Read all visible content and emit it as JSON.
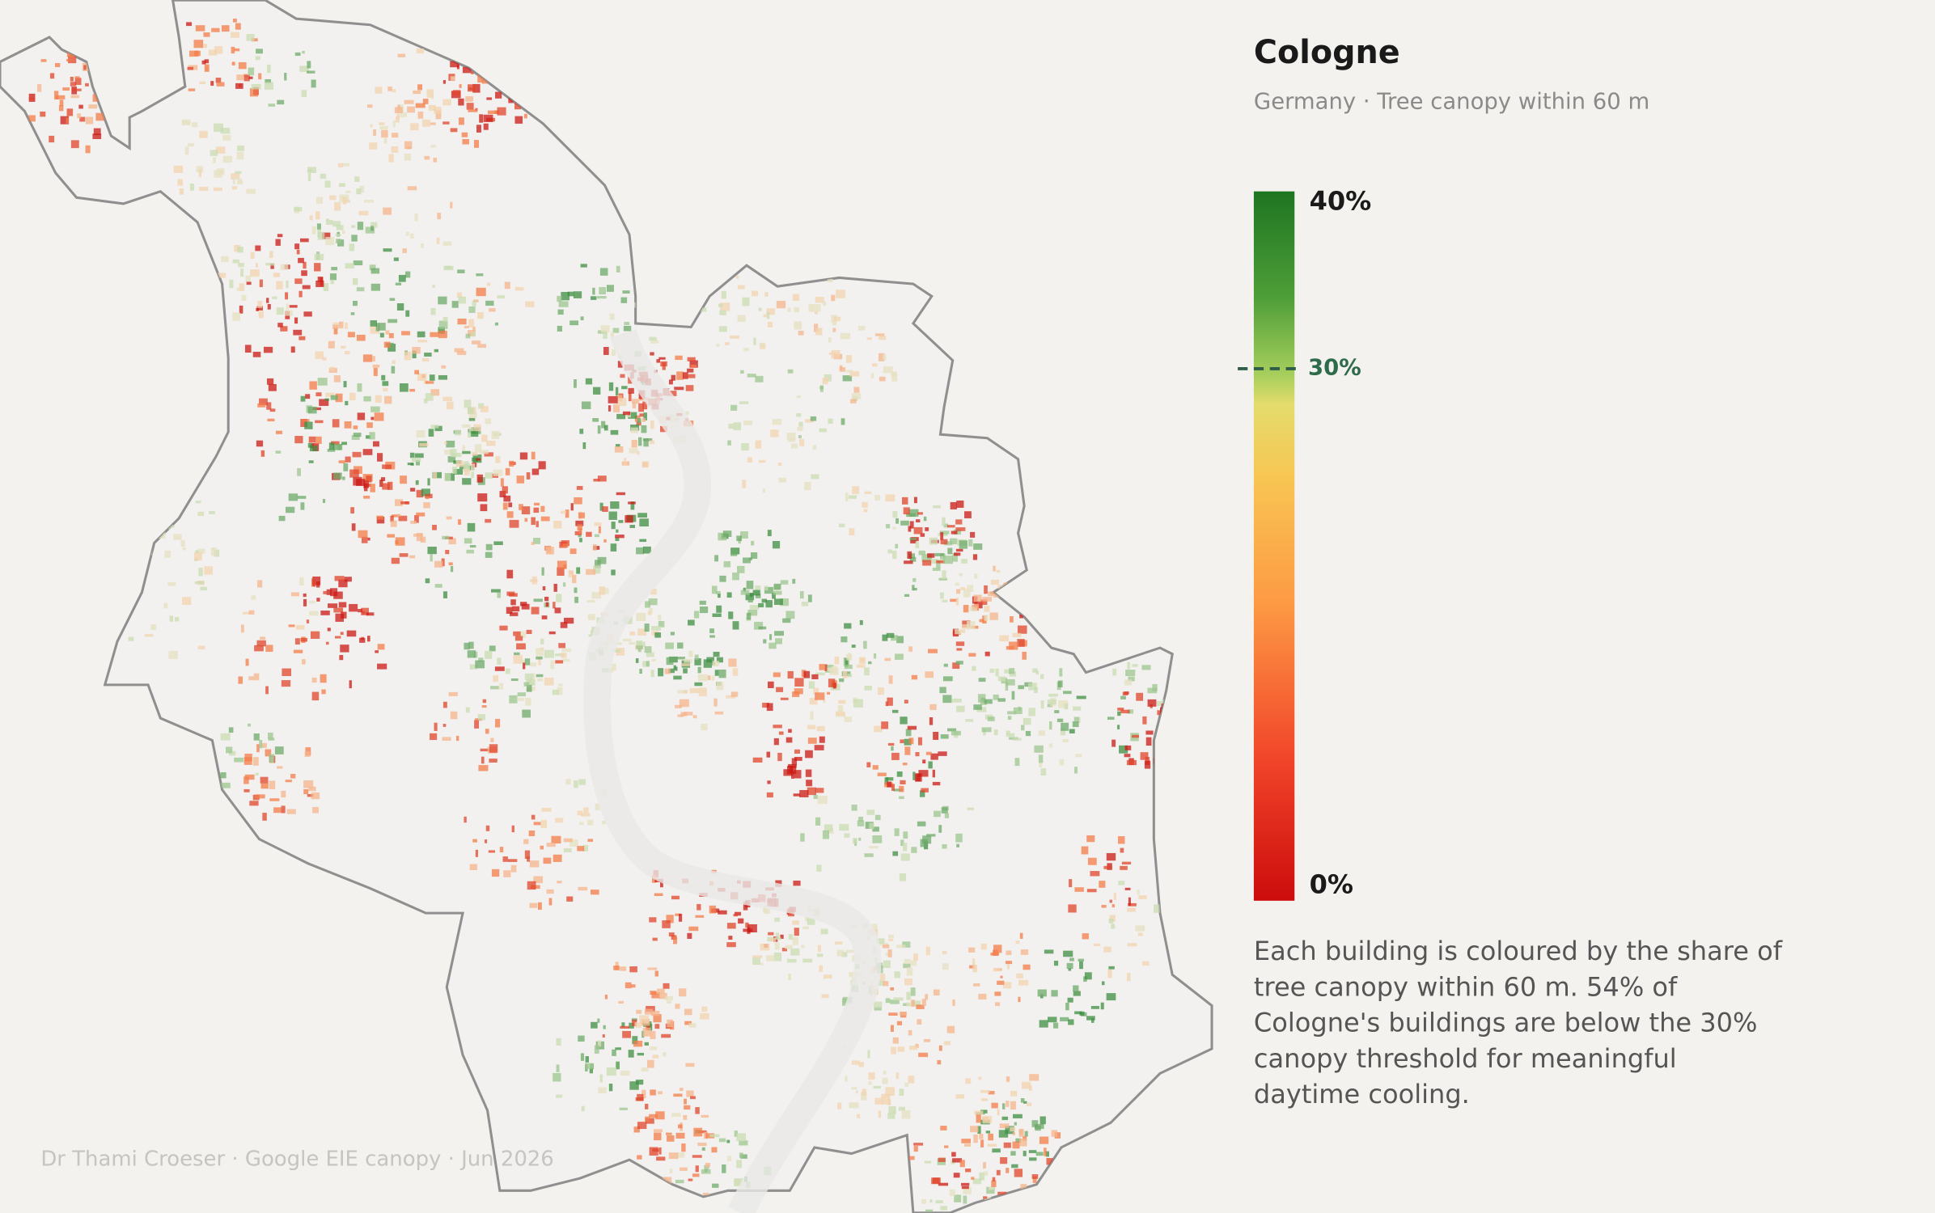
{
  "header": {
    "title": "Cologne",
    "subtitle": "Germany  ·  Tree canopy within 60 m"
  },
  "legend": {
    "ticks": [
      {
        "value": 40,
        "label": "40%"
      },
      {
        "value": 30,
        "label": "30%"
      },
      {
        "value": 0,
        "label": "0%"
      }
    ]
  },
  "description": "Each building is coloured by the share of tree canopy within 60 m. 54% of Cologne's buildings are below the 30% canopy threshold for meaningful daytime cooling.",
  "credit": "Dr Thami Croeser  ·  Google EIE canopy  ·  Jun 2026"
}
